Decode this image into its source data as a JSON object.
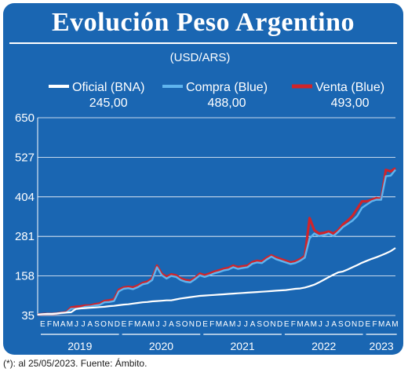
{
  "title": "Evolución Peso Argentino",
  "footnote": "(*): al 25/05/2023. Fuente: Ámbito.",
  "colors": {
    "background": "#1a66b2",
    "oficial": "#ffffff",
    "compra": "#5fb4ee",
    "venta": "#d0242a",
    "grid": "#ffffff"
  },
  "chart_data": {
    "type": "line",
    "unit_label": "(USD/ARS)",
    "ylim": [
      35,
      650
    ],
    "yticks": [
      35,
      158,
      281,
      404,
      527,
      650
    ],
    "grid": true,
    "legend_position": "top",
    "series": [
      {
        "name": "Oficial (BNA)",
        "last_value": "245,00",
        "values": [
          38,
          39,
          40,
          40,
          41,
          43,
          44,
          45,
          55,
          57,
          58,
          59,
          60,
          61,
          62,
          64,
          65,
          67,
          69,
          70,
          72,
          74,
          76,
          77,
          79,
          80,
          81,
          82,
          82,
          85,
          88,
          90,
          92,
          94,
          96,
          97,
          98,
          99,
          100,
          101,
          102,
          103,
          104,
          105,
          106,
          107,
          108,
          109,
          110,
          111,
          112,
          113,
          114,
          116,
          118,
          119,
          122,
          126,
          131,
          138,
          146,
          154,
          162,
          169,
          172,
          178,
          185,
          192,
          199,
          205,
          211,
          216,
          222,
          228,
          235,
          245
        ]
      },
      {
        "name": "Compra (Blue)",
        "last_value": "488,00",
        "values": [
          38,
          39,
          40,
          40,
          41,
          42,
          44,
          56,
          56,
          58,
          62,
          63,
          66,
          68,
          76,
          77,
          80,
          110,
          118,
          120,
          117,
          123,
          132,
          135,
          145,
          185,
          160,
          150,
          158,
          155,
          145,
          140,
          138,
          148,
          160,
          155,
          160,
          166,
          170,
          175,
          178,
          185,
          180,
          183,
          185,
          196,
          200,
          198,
          209,
          218,
          210,
          205,
          200,
          195,
          198,
          205,
          215,
          275,
          290,
          282,
          285,
          290,
          282,
          295,
          310,
          320,
          330,
          345,
          370,
          380,
          390,
          395,
          395,
          468,
          470,
          488
        ]
      },
      {
        "name": "Venta (Blue)",
        "last_value": "493,00",
        "values": [
          38,
          39,
          40,
          40,
          41,
          43,
          45,
          60,
          62,
          63,
          66,
          66,
          70,
          72,
          80,
          82,
          85,
          115,
          122,
          124,
          122,
          128,
          136,
          140,
          150,
          190,
          165,
          155,
          163,
          160,
          150,
          145,
          143,
          152,
          165,
          160,
          165,
          171,
          175,
          180,
          183,
          190,
          185,
          188,
          190,
          201,
          205,
          203,
          214,
          222,
          215,
          210,
          205,
          200,
          203,
          210,
          220,
          338,
          300,
          290,
          292,
          296,
          290,
          300,
          318,
          330,
          345,
          368,
          390,
          390,
          395,
          400,
          398,
          488,
          483,
          493
        ]
      }
    ],
    "month_labels": [
      "E",
      "F",
      "M",
      "A",
      "M",
      "J",
      "J",
      "A",
      "S",
      "O",
      "N",
      "D",
      "E",
      "F",
      "M",
      "A",
      "M",
      "J",
      "J",
      "A",
      "S",
      "O",
      "N",
      "D",
      "E",
      "F",
      "M",
      "A",
      "M",
      "J",
      "J",
      "A",
      "S",
      "O",
      "N",
      "D",
      "E",
      "F",
      "M",
      "A",
      "M",
      "J",
      "J",
      "A",
      "S",
      "O",
      "N",
      "D",
      "E",
      "F",
      "M",
      "A",
      "M"
    ],
    "years": [
      "2019",
      "2020",
      "2021",
      "2022",
      "2023"
    ]
  }
}
